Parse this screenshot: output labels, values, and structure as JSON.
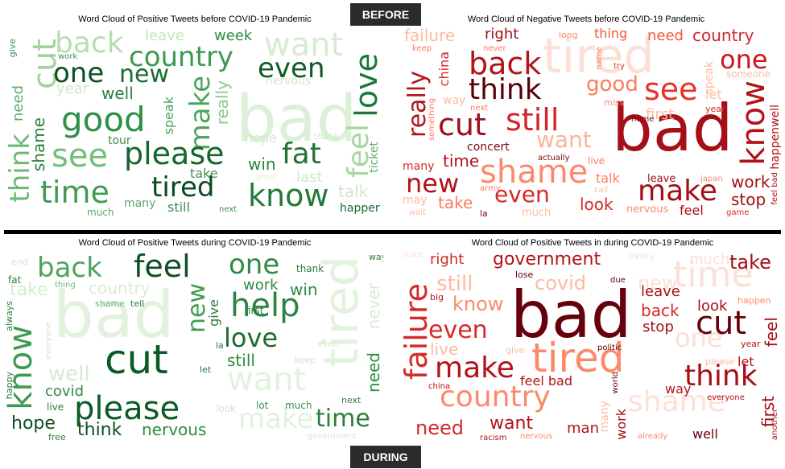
{
  "tags": {
    "before": "BEFORE",
    "during": "DURING"
  },
  "panels": [
    {
      "title": "Word Cloud of Positive Tweets before COVID-19 Pandemic",
      "palette": "green",
      "words": [
        {
          "t": "bad",
          "s": 80,
          "c": "#dcefd8"
        },
        {
          "t": "want",
          "s": 40,
          "c": "#d6ecd1"
        },
        {
          "t": "back",
          "s": 36,
          "c": "#b6deb0",
          "v": 0
        },
        {
          "t": "cut",
          "s": 40,
          "c": "#a3d39c",
          "v": 1
        },
        {
          "t": "country",
          "s": 34,
          "c": "#3a9a4f"
        },
        {
          "t": "leave",
          "s": 18,
          "c": "#c6e6c0"
        },
        {
          "t": "week",
          "s": 18,
          "c": "#2e8b42"
        },
        {
          "t": "one",
          "s": 34,
          "c": "#0d4f22"
        },
        {
          "t": "new",
          "s": 30,
          "c": "#1c6b30"
        },
        {
          "t": "even",
          "s": 34,
          "c": "#0f5a27"
        },
        {
          "t": "love",
          "s": 38,
          "c": "#1a7a35",
          "v": 1
        },
        {
          "t": "year",
          "s": 18,
          "c": "#cde9c7"
        },
        {
          "t": "well",
          "s": 20,
          "c": "#2e7d3e"
        },
        {
          "t": "good",
          "s": 42,
          "c": "#2f8f47"
        },
        {
          "t": "make",
          "s": 34,
          "c": "#4aa55c",
          "v": 1
        },
        {
          "t": "really",
          "s": 20,
          "c": "#8fc98a",
          "v": 1
        },
        {
          "t": "nervous",
          "s": 14,
          "c": "#cfe9c9"
        },
        {
          "t": "need",
          "s": 18,
          "c": "#5ab06a",
          "v": 1
        },
        {
          "t": "think",
          "s": 34,
          "c": "#6bba73",
          "v": 1
        },
        {
          "t": "shame",
          "s": 20,
          "c": "#2a7f3c",
          "v": 1
        },
        {
          "t": "see",
          "s": 40,
          "c": "#73bf78"
        },
        {
          "t": "please",
          "s": 38,
          "c": "#16652d"
        },
        {
          "t": "speak",
          "s": 16,
          "c": "#4da35d",
          "v": 1
        },
        {
          "t": "tour",
          "s": 14,
          "c": "#3d8f4c"
        },
        {
          "t": "hope",
          "s": 16,
          "c": "#cfe8c9"
        },
        {
          "t": "fat",
          "s": 36,
          "c": "#1f7436"
        },
        {
          "t": "feel",
          "s": 36,
          "c": "#a7d7a1",
          "v": 1
        },
        {
          "t": "ticket",
          "s": 14,
          "c": "#5daf6a",
          "v": 1
        },
        {
          "t": "time",
          "s": 38,
          "c": "#3f9c52"
        },
        {
          "t": "tired",
          "s": 34,
          "c": "#0a4a1f"
        },
        {
          "t": "win",
          "s": 20,
          "c": "#2d8440"
        },
        {
          "t": "take",
          "s": 16,
          "c": "#3e8f4d"
        },
        {
          "t": "know",
          "s": 38,
          "c": "#237a37"
        },
        {
          "t": "last",
          "s": 18,
          "c": "#cfe8c9"
        },
        {
          "t": "talk",
          "s": 20,
          "c": "#cfe8c9"
        },
        {
          "t": "many",
          "s": 14,
          "c": "#5aa869"
        },
        {
          "t": "still",
          "s": 16,
          "c": "#3f8d4d"
        },
        {
          "t": "much",
          "s": 12,
          "c": "#5aa869"
        },
        {
          "t": "next",
          "s": 10,
          "c": "#3f8d4d"
        },
        {
          "t": "happen",
          "s": 14,
          "c": "#1c6b30"
        },
        {
          "t": "give",
          "s": 11,
          "c": "#3f8d4d",
          "v": 1
        },
        {
          "t": "work",
          "s": 10,
          "c": "#3f8d4d"
        },
        {
          "t": "thank",
          "s": 11,
          "c": "#cfe8c9"
        },
        {
          "t": "great",
          "s": 10,
          "c": "#dcefd8"
        }
      ]
    },
    {
      "title": "Word Cloud of Negative Tweets before COVID-19 Pandemic",
      "palette": "red",
      "words": [
        {
          "t": "tired",
          "s": 60,
          "c": "#fde0d5"
        },
        {
          "t": "bad",
          "s": 80,
          "c": "#a50f15"
        },
        {
          "t": "failure",
          "s": 20,
          "c": "#fcbba1"
        },
        {
          "t": "right",
          "s": 18,
          "c": "#a50f15"
        },
        {
          "t": "long",
          "s": 11,
          "c": "#fb8a6a"
        },
        {
          "t": "thing",
          "s": 16,
          "c": "#f6553c"
        },
        {
          "t": "need",
          "s": 18,
          "c": "#f6553c"
        },
        {
          "t": "country",
          "s": 20,
          "c": "#d4242a"
        },
        {
          "t": "back",
          "s": 38,
          "c": "#b31218"
        },
        {
          "t": "one",
          "s": 32,
          "c": "#c7171f"
        },
        {
          "t": "think",
          "s": 36,
          "c": "#5a0008"
        },
        {
          "t": "good",
          "s": 26,
          "c": "#fb7c5c"
        },
        {
          "t": "see",
          "s": 38,
          "c": "#e63228"
        },
        {
          "t": "really",
          "s": 30,
          "c": "#b31218",
          "v": 1
        },
        {
          "t": "china",
          "s": 16,
          "c": "#d52a27",
          "v": 1
        },
        {
          "t": "know",
          "s": 40,
          "c": "#b31218",
          "v": 1
        },
        {
          "t": "cut",
          "s": 38,
          "c": "#9e0f17"
        },
        {
          "t": "still",
          "s": 38,
          "c": "#d4242a"
        },
        {
          "t": "shame",
          "s": 40,
          "c": "#fb8a6a"
        },
        {
          "t": "want",
          "s": 28,
          "c": "#fcb49a"
        },
        {
          "t": "new",
          "s": 32,
          "c": "#b31218"
        },
        {
          "t": "even",
          "s": 28,
          "c": "#d52a27"
        },
        {
          "t": "make",
          "s": 36,
          "c": "#a50f15"
        },
        {
          "t": "work",
          "s": 20,
          "c": "#a50f15"
        },
        {
          "t": "stop",
          "s": 20,
          "c": "#a50f15"
        },
        {
          "t": "take",
          "s": 20,
          "c": "#fb7c5c"
        },
        {
          "t": "look",
          "s": 20,
          "c": "#d52a27"
        },
        {
          "t": "feel",
          "s": 16,
          "c": "#a50f15"
        },
        {
          "t": "time",
          "s": 20,
          "c": "#b31218"
        },
        {
          "t": "concert",
          "s": 14,
          "c": "#7a0a10"
        },
        {
          "t": "talk",
          "s": 16,
          "c": "#fb7c5c"
        },
        {
          "t": "leave",
          "s": 13,
          "c": "#a50f15"
        },
        {
          "t": "japan",
          "s": 10,
          "c": "#fb8a6a"
        },
        {
          "t": "many",
          "s": 14,
          "c": "#d52a27"
        },
        {
          "t": "first",
          "s": 18,
          "c": "#fcbba1"
        },
        {
          "t": "year",
          "s": 11,
          "c": "#d52a27"
        },
        {
          "t": "happenwell",
          "s": 14,
          "c": "#b31218",
          "v": 1
        },
        {
          "t": "home",
          "s": 10,
          "c": "#7a0a10"
        },
        {
          "t": "miss",
          "s": 11,
          "c": "#fb8a6a"
        },
        {
          "t": "try",
          "s": 10,
          "c": "#d52a27"
        },
        {
          "t": "speak",
          "s": 14,
          "c": "#fcbba1",
          "v": 1
        },
        {
          "t": "someone",
          "s": 12,
          "c": "#fcbba1"
        },
        {
          "t": "let",
          "s": 16,
          "c": "#fcbba1"
        },
        {
          "t": "way",
          "s": 14,
          "c": "#fcbba1"
        },
        {
          "t": "next",
          "s": 10,
          "c": "#fb7c5c"
        },
        {
          "t": "actually",
          "s": 10,
          "c": "#7a0a10"
        },
        {
          "t": "live",
          "s": 12,
          "c": "#fb7c5c"
        },
        {
          "t": "nervous",
          "s": 13,
          "c": "#fb8a6a"
        },
        {
          "t": "keep",
          "s": 10,
          "c": "#fb7c5c"
        },
        {
          "t": "never",
          "s": 10,
          "c": "#fb7c5c"
        },
        {
          "t": "name",
          "s": 10,
          "c": "#fb7c5c",
          "v": 1
        },
        {
          "t": "something",
          "s": 10,
          "c": "#fb7c5c",
          "v": 1
        },
        {
          "t": "la",
          "s": 11,
          "c": "#7a0a10"
        },
        {
          "t": "army",
          "s": 10,
          "c": "#fb7c5c"
        },
        {
          "t": "may",
          "s": 14,
          "c": "#fcbba1"
        },
        {
          "t": "wait",
          "s": 10,
          "c": "#fcbba1"
        },
        {
          "t": "much",
          "s": 13,
          "c": "#fcbba1"
        },
        {
          "t": "game",
          "s": 10,
          "c": "#d52a27"
        },
        {
          "t": "call",
          "s": 10,
          "c": "#fcbba1"
        },
        {
          "t": "feel bad",
          "s": 10,
          "c": "#a50f15",
          "v": 1
        }
      ]
    },
    {
      "title": "Word Cloud of Positive Tweets during COVID-19 Pandemic",
      "palette": "green",
      "words": [
        {
          "t": "bad",
          "s": 80,
          "c": "#e2f2de"
        },
        {
          "t": "tired",
          "s": 60,
          "c": "#e2f2de",
          "v": 1
        },
        {
          "t": "back",
          "s": 34,
          "c": "#4da35d"
        },
        {
          "t": "feel",
          "s": 38,
          "c": "#0d4f22"
        },
        {
          "t": "one",
          "s": 34,
          "c": "#2e8b42"
        },
        {
          "t": "help",
          "s": 40,
          "c": "#2a8340"
        },
        {
          "t": "new",
          "s": 30,
          "c": "#3f9c52",
          "v": 1
        },
        {
          "t": "country",
          "s": 20,
          "c": "#d6ecd1"
        },
        {
          "t": "take",
          "s": 22,
          "c": "#d6ecd1"
        },
        {
          "t": "work",
          "s": 18,
          "c": "#2e8b42"
        },
        {
          "t": "win",
          "s": 20,
          "c": "#2e8b42"
        },
        {
          "t": "love",
          "s": 32,
          "c": "#1c6b30"
        },
        {
          "t": "know",
          "s": 40,
          "c": "#3e9a51",
          "v": 1
        },
        {
          "t": "cut",
          "s": 50,
          "c": "#0a5c25"
        },
        {
          "t": "want",
          "s": 40,
          "c": "#e2f2de"
        },
        {
          "t": "still",
          "s": 20,
          "c": "#2e8b42"
        },
        {
          "t": "need",
          "s": 20,
          "c": "#2e8b42",
          "v": 1
        },
        {
          "t": "never",
          "s": 20,
          "c": "#d6ecd1",
          "v": 1
        },
        {
          "t": "well",
          "s": 26,
          "c": "#d6ecd1"
        },
        {
          "t": "covid",
          "s": 18,
          "c": "#2e8b42"
        },
        {
          "t": "please",
          "s": 40,
          "c": "#0d5a27"
        },
        {
          "t": "hope",
          "s": 22,
          "c": "#0d4f22"
        },
        {
          "t": "think",
          "s": 22,
          "c": "#0d4f22"
        },
        {
          "t": "nervous",
          "s": 20,
          "c": "#2e8b42"
        },
        {
          "t": "make",
          "s": 34,
          "c": "#e2f2de"
        },
        {
          "t": "time",
          "s": 30,
          "c": "#2a7f3c"
        },
        {
          "t": "give",
          "s": 16,
          "c": "#2e7d3e",
          "v": 1
        },
        {
          "t": "thank",
          "s": 12,
          "c": "#2e7d3e"
        },
        {
          "t": "first",
          "s": 12,
          "c": "#2e7d3e"
        },
        {
          "t": "tell",
          "s": 11,
          "c": "#2e7d3e"
        },
        {
          "t": "shame",
          "s": 11,
          "c": "#6bba73"
        },
        {
          "t": "thing",
          "s": 10,
          "c": "#6bba73"
        },
        {
          "t": "fat",
          "s": 12,
          "c": "#2e7d3e"
        },
        {
          "t": "end",
          "s": 11,
          "c": "#cfe8c9"
        },
        {
          "t": "always",
          "s": 11,
          "c": "#2e7d3e",
          "v": 1
        },
        {
          "t": "happy",
          "s": 11,
          "c": "#2e7d3e",
          "v": 1
        },
        {
          "t": "everyone",
          "s": 10,
          "c": "#cfe8c9",
          "v": 1
        },
        {
          "t": "live",
          "s": 12,
          "c": "#2e7d3e"
        },
        {
          "t": "free",
          "s": 11,
          "c": "#2e7d3e"
        },
        {
          "t": "let",
          "s": 11,
          "c": "#2e7d3e"
        },
        {
          "t": "la",
          "s": 11,
          "c": "#2e7d3e"
        },
        {
          "t": "keep",
          "s": 11,
          "c": "#cfe8c9"
        },
        {
          "t": "even",
          "s": 11,
          "c": "#cfe8c9"
        },
        {
          "t": "lot",
          "s": 12,
          "c": "#3e8f4d"
        },
        {
          "t": "much",
          "s": 12,
          "c": "#3e8f4d"
        },
        {
          "t": "look",
          "s": 12,
          "c": "#cfe8c9"
        },
        {
          "t": "next",
          "s": 11,
          "c": "#2e7d3e"
        },
        {
          "t": "way",
          "s": 11,
          "c": "#2e7d3e"
        },
        {
          "t": "government",
          "s": 10,
          "c": "#cfe8c9"
        }
      ]
    },
    {
      "title": "Word Cloud of Positive Tweets in during COVID-19 Pandemic",
      "palette": "red",
      "words": [
        {
          "t": "bad",
          "s": 80,
          "c": "#67000d"
        },
        {
          "t": "time",
          "s": 44,
          "c": "#fde0d5"
        },
        {
          "t": "tired",
          "s": 50,
          "c": "#fb8a6a"
        },
        {
          "t": "failure",
          "s": 38,
          "c": "#d52a27",
          "v": 1
        },
        {
          "t": "right",
          "s": 18,
          "c": "#d52a27"
        },
        {
          "t": "government",
          "s": 22,
          "c": "#b31218"
        },
        {
          "t": "take",
          "s": 24,
          "c": "#a50f15"
        },
        {
          "t": "still",
          "s": 26,
          "c": "#fcbba1"
        },
        {
          "t": "covid",
          "s": 24,
          "c": "#fcbba1"
        },
        {
          "t": "new",
          "s": 24,
          "c": "#fde0d5"
        },
        {
          "t": "every",
          "s": 12,
          "c": "#fde0d5"
        },
        {
          "t": "much",
          "s": 18,
          "c": "#fde0d5"
        },
        {
          "t": "know",
          "s": 24,
          "c": "#fb8a6a"
        },
        {
          "t": "leave",
          "s": 18,
          "c": "#a50f15"
        },
        {
          "t": "back",
          "s": 20,
          "c": "#d52a27"
        },
        {
          "t": "look",
          "s": 18,
          "c": "#a50f15"
        },
        {
          "t": "stop",
          "s": 18,
          "c": "#a50f15"
        },
        {
          "t": "cut",
          "s": 40,
          "c": "#67000d"
        },
        {
          "t": "one",
          "s": 32,
          "c": "#fde0d5"
        },
        {
          "t": "feel",
          "s": 20,
          "c": "#a50f15",
          "v": 1
        },
        {
          "t": "even",
          "s": 30,
          "c": "#d52a27"
        },
        {
          "t": "live",
          "s": 20,
          "c": "#fcbba1"
        },
        {
          "t": "make",
          "s": 36,
          "c": "#b31218"
        },
        {
          "t": "feel bad",
          "s": 16,
          "c": "#b31218"
        },
        {
          "t": "think",
          "s": 36,
          "c": "#a50f15"
        },
        {
          "t": "let",
          "s": 16,
          "c": "#b31218"
        },
        {
          "t": "country",
          "s": 36,
          "c": "#fb8a6a"
        },
        {
          "t": "shame",
          "s": 36,
          "c": "#fde0d5"
        },
        {
          "t": "way",
          "s": 16,
          "c": "#b31218"
        },
        {
          "t": "first",
          "s": 20,
          "c": "#a50f15",
          "v": 1
        },
        {
          "t": "need",
          "s": 24,
          "c": "#d52a27"
        },
        {
          "t": "want",
          "s": 22,
          "c": "#b31218"
        },
        {
          "t": "man",
          "s": 18,
          "c": "#b31218"
        },
        {
          "t": "work",
          "s": 16,
          "c": "#a50f15",
          "v": 1
        },
        {
          "t": "well",
          "s": 16,
          "c": "#67000d"
        },
        {
          "t": "due",
          "s": 10,
          "c": "#67000d"
        },
        {
          "t": "politic",
          "s": 10,
          "c": "#67000d"
        },
        {
          "t": "world",
          "s": 10,
          "c": "#67000d",
          "v": 1
        },
        {
          "t": "lose",
          "s": 11,
          "c": "#67000d"
        },
        {
          "t": "big",
          "s": 11,
          "c": "#b31218"
        },
        {
          "t": "give",
          "s": 11,
          "c": "#fcbba1"
        },
        {
          "t": "year",
          "s": 11,
          "c": "#b31218"
        },
        {
          "t": "happen",
          "s": 11,
          "c": "#fb8a6a"
        },
        {
          "t": "please",
          "s": 11,
          "c": "#fcbba1"
        },
        {
          "t": "china",
          "s": 10,
          "c": "#b31218"
        },
        {
          "t": "racism",
          "s": 10,
          "c": "#b31218"
        },
        {
          "t": "nervous",
          "s": 10,
          "c": "#fb8a6a"
        },
        {
          "t": "already",
          "s": 10,
          "c": "#fb8a6a"
        },
        {
          "t": "everyone",
          "s": 10,
          "c": "#b31218"
        },
        {
          "t": "many",
          "s": 14,
          "c": "#fcbba1",
          "v": 1
        },
        {
          "t": "state",
          "s": 10,
          "c": "#fde0d5"
        },
        {
          "t": "another",
          "s": 10,
          "c": "#b31218",
          "v": 1
        }
      ]
    }
  ]
}
